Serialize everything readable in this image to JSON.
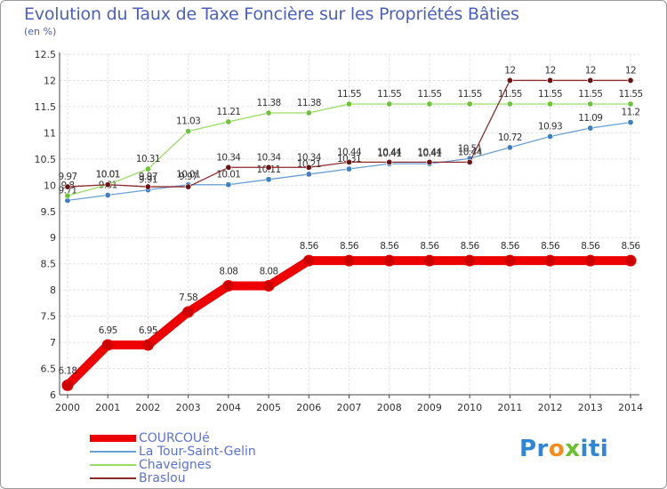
{
  "page": {
    "title": "Evolution du Taux de Taxe Foncière sur les Propriétés Bâties",
    "subtitle": "(en %)"
  },
  "brand": {
    "parts": [
      "Pr",
      "o",
      "x",
      "i",
      "t",
      "i"
    ],
    "colors": [
      "#2f86d4",
      "#f28c1c",
      "#6cbf2f",
      "#2f86d4",
      "#2f86d4",
      "#2f86d4"
    ]
  },
  "chart_data": {
    "type": "line",
    "title": "Evolution du Taux de Taxe Foncière sur les Propriétés Bâties",
    "ylabel": "(en %)",
    "xlabel": "",
    "ylim": [
      6,
      12.5
    ],
    "yticks": [
      "6",
      "6.5",
      "7",
      "7.5",
      "8",
      "8.5",
      "9",
      "9.5",
      "10",
      "10.5",
      "11",
      "11.5",
      "12",
      "12.5"
    ],
    "categories": [
      "2000",
      "2001",
      "2002",
      "2003",
      "2004",
      "2005",
      "2006",
      "2007",
      "2008",
      "2009",
      "2010",
      "2011",
      "2012",
      "2013",
      "2014"
    ],
    "grid": true,
    "legend_position": "bottom-left",
    "series": [
      {
        "name": "COURCOUé",
        "color": "#ee0000",
        "marker": "#cc0000",
        "values": [
          6.18,
          6.95,
          6.95,
          7.58,
          8.08,
          8.08,
          8.56,
          8.56,
          8.56,
          8.56,
          8.56,
          8.56,
          8.56,
          8.56,
          8.56
        ],
        "labels": [
          "6.18",
          "6.95",
          "6.95",
          "7.58",
          "8.08",
          "8.08",
          "8.56",
          "8.56",
          "8.56",
          "8.56",
          "8.56",
          "8.56",
          "8.56",
          "8.56",
          "8.56"
        ]
      },
      {
        "name": "La Tour-Saint-Gelin",
        "color": "#6a9fd4",
        "marker": "#3d7fc4",
        "values": [
          9.71,
          9.81,
          9.91,
          10.01,
          10.01,
          10.11,
          10.21,
          10.31,
          10.41,
          10.41,
          10.51,
          10.72,
          10.93,
          11.09,
          11.2
        ],
        "labels": [
          "9.71",
          "9.81",
          "9.91",
          "10.01",
          "10.01",
          "10.11",
          "10.21",
          "10.31",
          "10.41",
          "10.41",
          "10.51",
          "10.72",
          "10.93",
          "11.09",
          "11.2"
        ]
      },
      {
        "name": "Chaveignes",
        "color": "#99dd66",
        "marker": "#6fc23c",
        "values": [
          9.8,
          10.01,
          10.31,
          11.03,
          11.21,
          11.38,
          11.38,
          11.55,
          11.55,
          11.55,
          11.55,
          11.55,
          11.55,
          11.55,
          11.55
        ],
        "labels": [
          "9.8",
          "10.01",
          "10.31",
          "11.03",
          "11.21",
          "11.38",
          "11.38",
          "11.55",
          "11.55",
          "11.55",
          "11.55",
          "11.55",
          "11.55",
          "11.55",
          "11.55"
        ]
      },
      {
        "name": "Braslou",
        "color": "#8b2a2a",
        "marker": "#6a1414",
        "values": [
          9.97,
          10.01,
          9.97,
          9.97,
          10.34,
          10.34,
          10.34,
          10.44,
          10.44,
          10.44,
          10.44,
          12,
          12,
          12,
          12
        ],
        "labels": [
          "9.97",
          "10.01",
          "9.97",
          "9.97",
          "10.34",
          "10.34",
          "10.34",
          "10.44",
          "10.44",
          "10.44",
          "10.44",
          "12",
          "12",
          "12",
          "12"
        ]
      }
    ]
  }
}
